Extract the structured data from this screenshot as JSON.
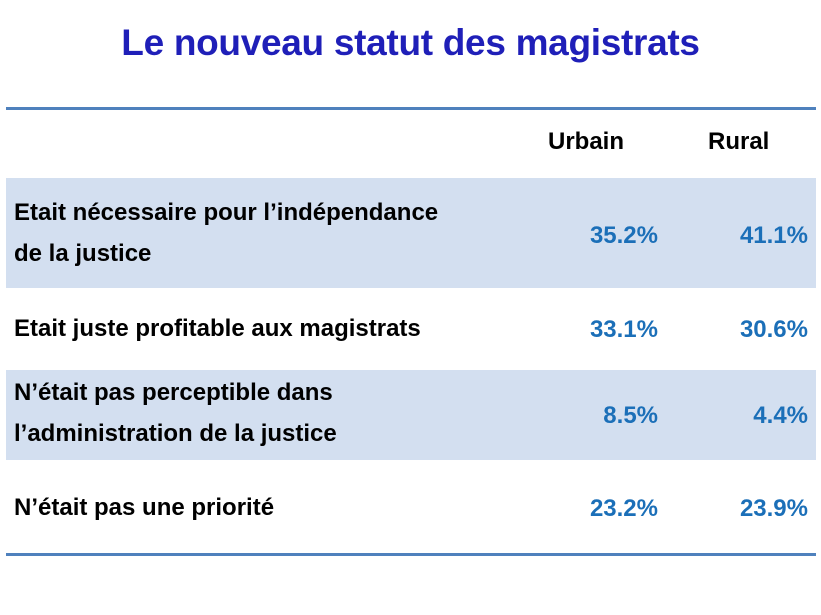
{
  "title": "Le nouveau statut des magistrats",
  "columns": [
    "Urbain",
    "Rural"
  ],
  "rows": [
    {
      "label_lines": [
        "Etait nécessaire pour l’indépendance",
        "de la justice"
      ],
      "urbain": "35.2%",
      "rural": "41.1%"
    },
    {
      "label_lines": [
        "Etait juste profitable aux magistrats"
      ],
      "urbain": "33.1%",
      "rural": "30.6%"
    },
    {
      "label_lines": [
        "N’était pas perceptible dans",
        "l’administration de la justice"
      ],
      "urbain": "8.5%",
      "rural": "4.4%"
    },
    {
      "label_lines": [
        "N’était pas une priorité"
      ],
      "urbain": "23.2%",
      "rural": "23.9%"
    }
  ],
  "colors": {
    "title": "#1f1fb8",
    "values": "#1b6fb8",
    "row_shading": "#d3dff0",
    "rule": "#4f81bd"
  }
}
